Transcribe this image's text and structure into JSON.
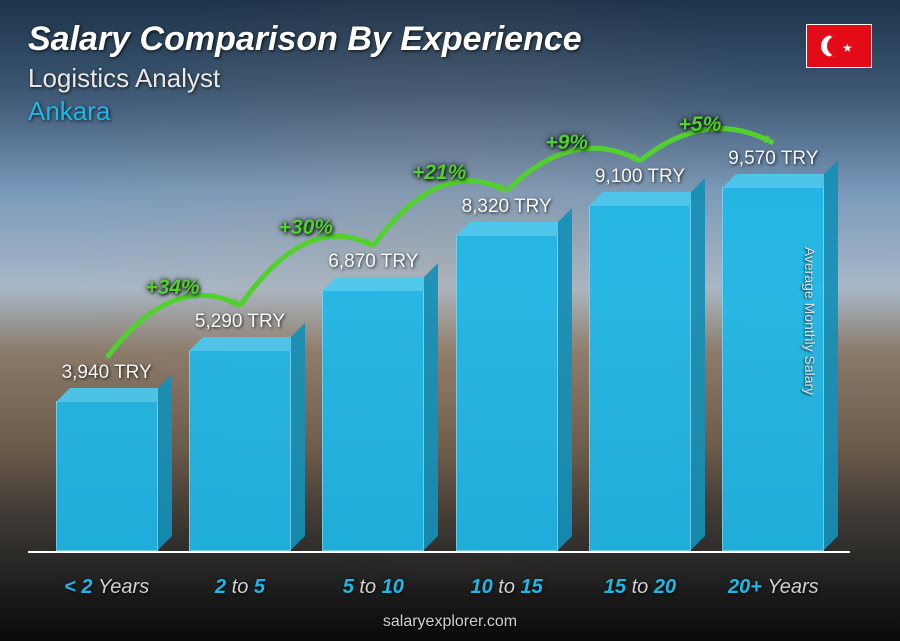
{
  "header": {
    "title": "Salary Comparison By Experience",
    "subtitle": "Logistics Analyst",
    "location": "Ankara",
    "location_color": "#1eb8e8"
  },
  "flag": {
    "bg_color": "#e30a17",
    "name": "turkey-flag"
  },
  "chart": {
    "type": "bar",
    "y_axis_label": "Average Monthly Salary",
    "max_value": 10000,
    "bar_fill": "#1eb8e8",
    "bar_top_fill": "#4acaf0",
    "bar_side_fill": "#1590b8",
    "bar_opacity": 0.92,
    "bars": [
      {
        "category_pre": "< 2",
        "category_unit": "Years",
        "value": 3940,
        "label": "3,940 TRY"
      },
      {
        "category_pre": "2",
        "category_mid": "to",
        "category_post": "5",
        "value": 5290,
        "label": "5,290 TRY"
      },
      {
        "category_pre": "5",
        "category_mid": "to",
        "category_post": "10",
        "value": 6870,
        "label": "6,870 TRY"
      },
      {
        "category_pre": "10",
        "category_mid": "to",
        "category_post": "15",
        "value": 8320,
        "label": "8,320 TRY"
      },
      {
        "category_pre": "15",
        "category_mid": "to",
        "category_post": "20",
        "value": 9100,
        "label": "9,100 TRY"
      },
      {
        "category_pre": "20+",
        "category_unit": "Years",
        "value": 9570,
        "label": "9,570 TRY"
      }
    ],
    "arcs": [
      {
        "label": "+34%",
        "from": 0,
        "to": 1
      },
      {
        "label": "+30%",
        "from": 1,
        "to": 2
      },
      {
        "label": "+21%",
        "from": 2,
        "to": 3
      },
      {
        "label": "+9%",
        "from": 3,
        "to": 4
      },
      {
        "label": "+5%",
        "from": 4,
        "to": 5
      }
    ],
    "arc_color": "#52d030",
    "arc_label_color": "#52d030",
    "x_label_color": "#1eb8e8"
  },
  "footer": {
    "source": "salaryexplorer.com"
  }
}
